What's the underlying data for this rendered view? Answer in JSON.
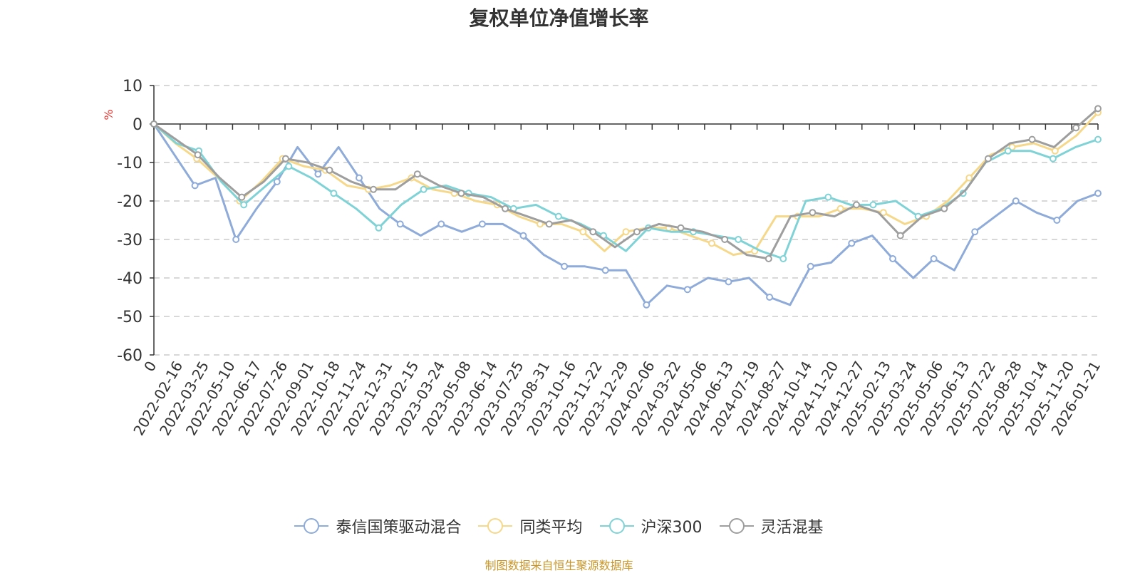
{
  "chart_data": {
    "type": "line",
    "title": "复权单位净值增长率",
    "ylabel": "%",
    "ylim": [
      -60,
      10
    ],
    "yticks": [
      10,
      0,
      -10,
      -20,
      -30,
      -40,
      -50,
      -60
    ],
    "grid": "horizontal dashed",
    "legend_position": "bottom-center",
    "x_tick_labels": [
      "0",
      "2022-02-16",
      "2022-03-25",
      "2022-05-10",
      "2022-06-17",
      "2022-07-26",
      "2022-09-01",
      "2022-10-18",
      "2022-11-24",
      "2022-12-31",
      "2023-02-15",
      "2023-03-24",
      "2023-05-08",
      "2023-06-14",
      "2023-07-25",
      "2023-08-31",
      "2023-10-16",
      "2023-11-22",
      "2023-12-29",
      "2024-02-06",
      "2024-03-22",
      "2024-05-06",
      "2024-06-13",
      "2024-07-19",
      "2024-08-27",
      "2024-10-14",
      "2024-11-20",
      "2024-12-27",
      "2025-02-13",
      "2025-03-24",
      "2025-05-06",
      "2025-06-13",
      "2025-07-22",
      "2025-08-28",
      "2025-10-14",
      "2025-11-20",
      "2026-01-21"
    ],
    "series": [
      {
        "name": "泰信国策驱动混合",
        "color": "#8eabd9",
        "values": [
          0,
          -8,
          -16,
          -14,
          -30,
          -22,
          -15,
          -6,
          -13,
          -6,
          -14,
          -22,
          -26,
          -29,
          -26,
          -28,
          -26,
          -26,
          -29,
          -34,
          -37,
          -37,
          -38,
          -38,
          -47,
          -42,
          -43,
          -40,
          -41,
          -40,
          -45,
          -47,
          -37,
          -36,
          -31,
          -29,
          -35,
          -40,
          -35,
          -38,
          -28,
          -24,
          -20,
          -23,
          -25,
          -20,
          -18
        ]
      },
      {
        "name": "同类平均",
        "color": "#f6d88b",
        "values": [
          0,
          -5,
          -9,
          -14,
          -20,
          -15,
          -9,
          -11,
          -12,
          -16,
          -17,
          -16,
          -14,
          -17,
          -18,
          -20,
          -21,
          -24,
          -26,
          -26,
          -28,
          -33,
          -28,
          -27,
          -27,
          -29,
          -31,
          -34,
          -33,
          -24,
          -24,
          -24,
          -22,
          -22,
          -23,
          -26,
          -24,
          -20,
          -14,
          -8,
          -6,
          -5,
          -7,
          -3,
          3
        ]
      },
      {
        "name": "沪深300",
        "color": "#7fd3d6",
        "values": [
          0,
          -5,
          -7,
          -15,
          -21,
          -16,
          -11,
          -14,
          -18,
          -22,
          -27,
          -21,
          -17,
          -16,
          -18,
          -19,
          -22,
          -21,
          -24,
          -26,
          -29,
          -33,
          -27,
          -28,
          -28,
          -29,
          -30,
          -33,
          -35,
          -20,
          -19,
          -21,
          -21,
          -20,
          -24,
          -22,
          -18,
          -10,
          -7,
          -7,
          -9,
          -6,
          -4
        ]
      },
      {
        "name": "灵活混基",
        "color": "#9e9e9e",
        "values": [
          0,
          -4,
          -8,
          -14,
          -19,
          -15,
          -9,
          -10,
          -12,
          -15,
          -17,
          -17,
          -13,
          -16,
          -18,
          -19,
          -22,
          -24,
          -26,
          -25,
          -28,
          -32,
          -28,
          -26,
          -27,
          -28,
          -30,
          -34,
          -35,
          -24,
          -23,
          -24,
          -21,
          -23,
          -29,
          -24,
          -22,
          -17,
          -9,
          -5,
          -4,
          -6,
          -1,
          4
        ]
      }
    ]
  },
  "source_note": "制图数据来自恒生聚源数据库"
}
